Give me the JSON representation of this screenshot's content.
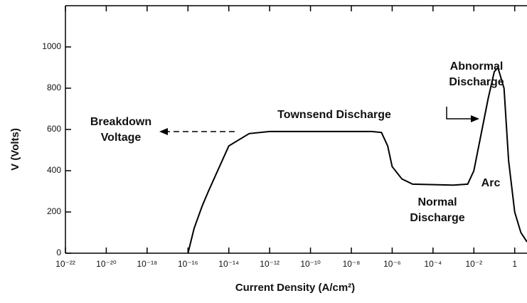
{
  "chart_data": {
    "type": "line",
    "xlabel": "Current Density (A/cm²)",
    "ylabel": "V (Volts)",
    "xscale": "log",
    "xlim": [
      1e-22,
      4
    ],
    "ylim": [
      0,
      1200
    ],
    "xticks": [
      {
        "value": 1e-22,
        "label": "10⁻²²"
      },
      {
        "value": 1e-20,
        "label": "10⁻²⁰"
      },
      {
        "value": 1e-18,
        "label": "10⁻¹⁸"
      },
      {
        "value": 1e-16,
        "label": "10⁻¹⁶"
      },
      {
        "value": 1e-14,
        "label": "10⁻¹⁴"
      },
      {
        "value": 1e-12,
        "label": "10⁻¹²"
      },
      {
        "value": 1e-10,
        "label": "10⁻¹⁰"
      },
      {
        "value": 1e-08,
        "label": "10⁻⁸"
      },
      {
        "value": 1e-06,
        "label": "10⁻⁶"
      },
      {
        "value": 0.0001,
        "label": "10⁻⁴"
      },
      {
        "value": 0.01,
        "label": "10⁻²"
      },
      1
    ],
    "yticks": [
      0,
      200,
      400,
      600,
      800,
      1000
    ],
    "series": [
      {
        "color": "#000000",
        "x": [
          1e-16,
          2e-16,
          5e-16,
          1e-15,
          1e-14,
          1e-13,
          1e-12,
          1e-07,
          3e-07,
          6e-07,
          1e-06,
          3e-06,
          1e-05,
          0.001,
          0.005,
          0.01,
          0.02,
          0.05,
          0.1,
          0.15,
          0.3,
          0.5,
          1,
          2,
          4
        ],
        "values": [
          0,
          120,
          230,
          300,
          520,
          580,
          590,
          590,
          585,
          520,
          420,
          360,
          335,
          330,
          335,
          400,
          550,
          750,
          880,
          900,
          800,
          450,
          200,
          100,
          55
        ]
      }
    ],
    "annotations": [
      "Breakdown Voltage",
      "Townsend Discharge",
      "Normal Discharge",
      "Abnormal Discharge",
      "Arc"
    ]
  }
}
